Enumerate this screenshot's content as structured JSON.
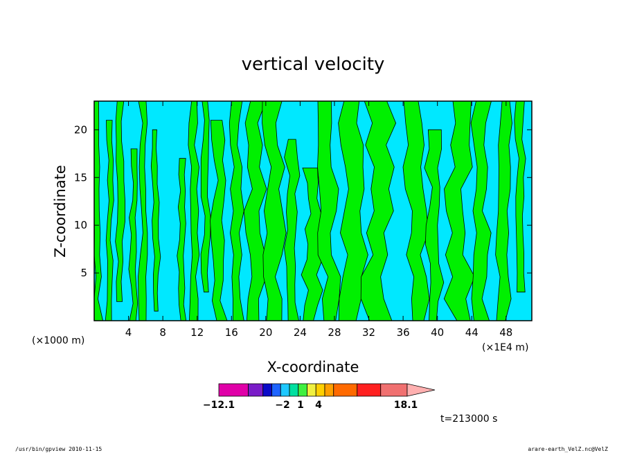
{
  "chart_data": {
    "type": "heatmap",
    "title": "vertical velocity",
    "xlabel": "X-coordinate",
    "ylabel": "Z-coordinate",
    "x_scale_note": "(×1E4 m)",
    "y_scale_note": "(×1000 m)",
    "xlim": [
      0,
      51
    ],
    "ylim": [
      0,
      23
    ],
    "xticks": [
      4,
      8,
      12,
      16,
      20,
      24,
      28,
      32,
      36,
      40,
      44,
      48
    ],
    "yticks": [
      5,
      10,
      15,
      20
    ],
    "colorbar": {
      "colors": [
        "#e000a8",
        "#7a1cc8",
        "#0a0ac8",
        "#1e64ff",
        "#1ec8ff",
        "#00e0a0",
        "#40f040",
        "#f0f040",
        "#ffd000",
        "#ffa000",
        "#ff6a00",
        "#ff2020",
        "#f07070",
        "#ffb0b0"
      ],
      "labels": [
        {
          "text": "−12.1",
          "value": -12.1
        },
        {
          "text": "−2",
          "value": -2
        },
        {
          "text": "1",
          "value": 1
        },
        {
          "text": "4",
          "value": 4
        },
        {
          "text": "18.1",
          "value": 18.1
        }
      ]
    },
    "dominant_colors": {
      "positive": "#00f000",
      "negative": "#00e8ff"
    }
  },
  "annotations": {
    "time": "t=213000 s",
    "footer_left": "/usr/bin/gpview  2010-11-15",
    "footer_right": "arare-earth_VelZ.nc@VelZ"
  }
}
